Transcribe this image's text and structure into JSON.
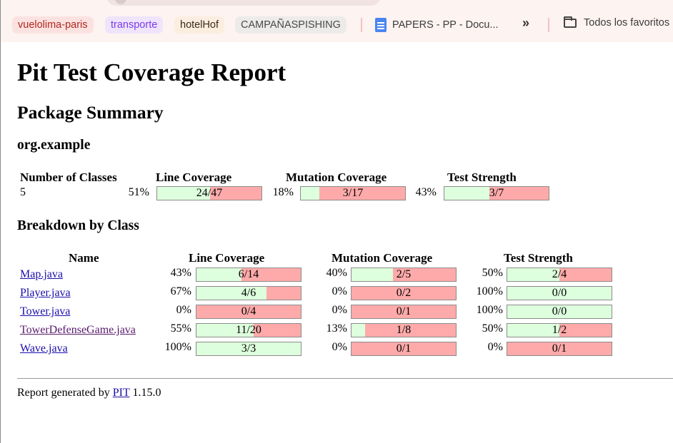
{
  "bookmarks": {
    "items": [
      "vuelolima-paris",
      "transporte",
      "hotelHof",
      "CAMPAÑASPISHING"
    ],
    "doc": "PAPERS - PP - Docu...",
    "overflow": "»",
    "folder": "Todos los favoritos"
  },
  "report": {
    "title": "Pit Test Coverage Report",
    "package_summary": "Package Summary",
    "package_name": "org.example",
    "summary_headers": {
      "classes": "Number of Classes",
      "line": "Line Coverage",
      "mutation": "Mutation Coverage",
      "strength": "Test Strength"
    },
    "summary": {
      "classes": "5",
      "line": {
        "pct": "51%",
        "text": "24/47",
        "ratio": 0.51
      },
      "mutation": {
        "pct": "18%",
        "text": "3/17",
        "ratio": 0.18
      },
      "strength": {
        "pct": "43%",
        "text": "3/7",
        "ratio": 0.43
      }
    },
    "breakdown_title": "Breakdown by Class",
    "breakdown_headers": {
      "name": "Name",
      "line": "Line Coverage",
      "mutation": "Mutation Coverage",
      "strength": "Test Strength"
    },
    "classes": [
      {
        "name": "Map.java",
        "line": {
          "pct": "43%",
          "text": "6/14",
          "ratio": 0.43
        },
        "mutation": {
          "pct": "40%",
          "text": "2/5",
          "ratio": 0.4
        },
        "strength": {
          "pct": "50%",
          "text": "2/4",
          "ratio": 0.5
        }
      },
      {
        "name": "Player.java",
        "line": {
          "pct": "67%",
          "text": "4/6",
          "ratio": 0.67
        },
        "mutation": {
          "pct": "0%",
          "text": "0/2",
          "ratio": 0
        },
        "strength": {
          "pct": "100%",
          "text": "0/0",
          "ratio": 1
        }
      },
      {
        "name": "Tower.java",
        "line": {
          "pct": "0%",
          "text": "0/4",
          "ratio": 0
        },
        "mutation": {
          "pct": "0%",
          "text": "0/1",
          "ratio": 0
        },
        "strength": {
          "pct": "100%",
          "text": "0/0",
          "ratio": 1
        }
      },
      {
        "name": "TowerDefenseGame.java",
        "line": {
          "pct": "55%",
          "text": "11/20",
          "ratio": 0.55
        },
        "mutation": {
          "pct": "13%",
          "text": "1/8",
          "ratio": 0.13
        },
        "strength": {
          "pct": "50%",
          "text": "1/2",
          "ratio": 0.5
        }
      },
      {
        "name": "Wave.java",
        "line": {
          "pct": "100%",
          "text": "3/3",
          "ratio": 1
        },
        "mutation": {
          "pct": "0%",
          "text": "0/1",
          "ratio": 0
        },
        "strength": {
          "pct": "0%",
          "text": "0/1",
          "ratio": 0
        }
      }
    ],
    "footer": {
      "prefix": "Report generated by",
      "link": "PIT",
      "version": "1.15.0"
    }
  },
  "colors": {
    "covered": "#ddffdd",
    "uncovered": "#ffaaaa",
    "link": "#1a0dab",
    "visited_link": "#5a1a6e"
  }
}
